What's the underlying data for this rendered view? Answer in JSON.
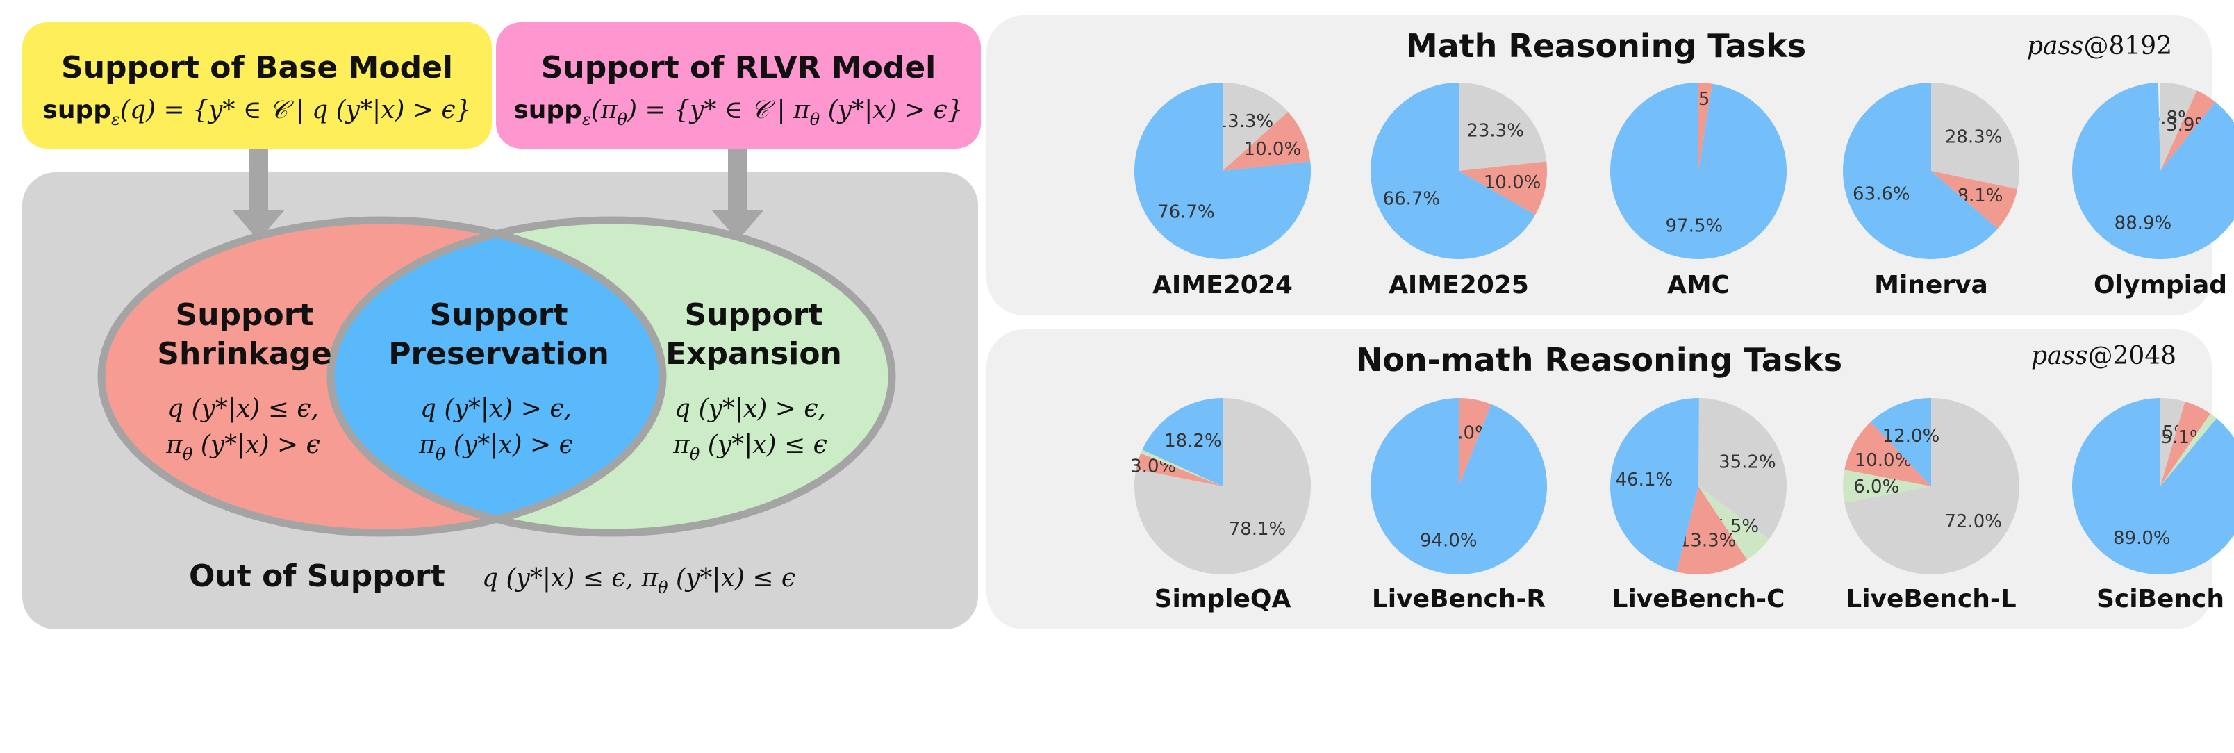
{
  "colors": {
    "base_box": "#fdee5a",
    "rlvr_box": "#fe97cf",
    "panel_gray": "#d4d4d4",
    "right_panel": "#f0f0f0",
    "shrink": "#f79c93",
    "preserve": "#5ab9fb",
    "expand": "#ccebc7",
    "outline": "#a4a4a4",
    "arrow": "#a6a6a6",
    "pie_preserve": "#74befa",
    "pie_shrink": "#f19a90",
    "pie_expand": "#cde7c5",
    "pie_out": "#d3d3d3"
  },
  "diagram": {
    "base_title": "Support of Base Model",
    "base_formula_lead": "supp",
    "base_formula_sub": "ε",
    "base_formula_rest": "(q) = {y* ∈ 𝒞 | q (y*|x) > ϵ}",
    "rlvr_title": "Support of RLVR Model",
    "rlvr_formula_lead": "supp",
    "rlvr_formula_sub": "ε",
    "rlvr_formula_rest": "(π",
    "rlvr_formula_sub2": "θ",
    "rlvr_formula_tail": ") = {y* ∈ 𝒞 | π",
    "rlvr_formula_sub3": "θ",
    "rlvr_formula_end": " (y*|x) > ϵ}",
    "shrink_title_1": "Support",
    "shrink_title_2": "Shrinkage",
    "shrink_cond_1": "q (y*|x) ≤ ϵ,",
    "shrink_cond_2_a": "π",
    "shrink_cond_2_sub": "θ",
    "shrink_cond_2_b": " (y*|x) > ϵ",
    "preserve_title_1": "Support",
    "preserve_title_2": "Preservation",
    "preserve_cond_1": "q (y*|x) > ϵ,",
    "preserve_cond_2_a": "π",
    "preserve_cond_2_sub": "θ",
    "preserve_cond_2_b": " (y*|x) > ϵ",
    "expand_title_1": "Support",
    "expand_title_2": "Expansion",
    "expand_cond_1": "q (y*|x) > ϵ,",
    "expand_cond_2_a": "π",
    "expand_cond_2_sub": "θ",
    "expand_cond_2_b": " (y*|x) ≤ ϵ",
    "out_title": "Out of Support",
    "out_cond_a": "q (y*|x) ≤ ϵ, π",
    "out_cond_sub": "θ",
    "out_cond_b": " (y*|x) ≤ ϵ"
  },
  "chart_data": [
    {
      "type": "pie",
      "title": "Math Reasoning Tasks",
      "annotation_italic": "pass",
      "annotation_rest": "@8192",
      "pies": [
        {
          "name": "AIME2024",
          "slices": [
            {
              "category": "out",
              "value": 13.3,
              "label": "13.3%"
            },
            {
              "category": "shrink",
              "value": 10.0,
              "label": "10.0%"
            },
            {
              "category": "expand",
              "value": 0,
              "label": ""
            },
            {
              "category": "preserve",
              "value": 76.7,
              "label": "76.7%"
            }
          ]
        },
        {
          "name": "AIME2025",
          "slices": [
            {
              "category": "out",
              "value": 23.3,
              "label": "23.3%"
            },
            {
              "category": "shrink",
              "value": 10.0,
              "label": "10.0%"
            },
            {
              "category": "expand",
              "value": 0,
              "label": ""
            },
            {
              "category": "preserve",
              "value": 66.7,
              "label": "66.7%"
            }
          ]
        },
        {
          "name": "AMC",
          "slices": [
            {
              "category": "out",
              "value": 0,
              "label": ""
            },
            {
              "category": "shrink",
              "value": 2.5,
              "label": "2.5%"
            },
            {
              "category": "expand",
              "value": 0,
              "label": ""
            },
            {
              "category": "preserve",
              "value": 97.5,
              "label": "97.5%"
            }
          ]
        },
        {
          "name": "Minerva",
          "slices": [
            {
              "category": "out",
              "value": 28.3,
              "label": "28.3%"
            },
            {
              "category": "shrink",
              "value": 8.1,
              "label": "8.1%"
            },
            {
              "category": "expand",
              "value": 0,
              "label": ""
            },
            {
              "category": "preserve",
              "value": 63.6,
              "label": "63.6%"
            }
          ]
        },
        {
          "name": "Olympiad",
          "slices": [
            {
              "category": "out",
              "value": 6.8,
              "label": "6.8%"
            },
            {
              "category": "shrink",
              "value": 3.9,
              "label": "3.9%"
            },
            {
              "category": "expand",
              "value": 0,
              "label": ""
            },
            {
              "category": "preserve",
              "value": 88.9,
              "label": "88.9%"
            }
          ]
        }
      ]
    },
    {
      "type": "pie",
      "title": "Non-math Reasoning Tasks",
      "annotation_italic": "pass",
      "annotation_rest": "@2048",
      "pies": [
        {
          "name": "SimpleQA",
          "slices": [
            {
              "category": "out",
              "value": 78.1,
              "label": "78.1%"
            },
            {
              "category": "shrink",
              "value": 3.0,
              "label": "3.0%"
            },
            {
              "category": "expand",
              "value": 0.7,
              "label": ""
            },
            {
              "category": "preserve",
              "value": 18.2,
              "label": "18.2%"
            }
          ]
        },
        {
          "name": "LiveBench-R",
          "slices": [
            {
              "category": "out",
              "value": 0,
              "label": ""
            },
            {
              "category": "shrink",
              "value": 6.0,
              "label": "6.0%"
            },
            {
              "category": "expand",
              "value": 0,
              "label": ""
            },
            {
              "category": "preserve",
              "value": 94.0,
              "label": "94.0%"
            }
          ]
        },
        {
          "name": "LiveBench-C",
          "slices": [
            {
              "category": "out",
              "value": 35.2,
              "label": "35.2%"
            },
            {
              "category": "expand",
              "value": 5.5,
              "label": "5.5%"
            },
            {
              "category": "shrink",
              "value": 13.3,
              "label": "13.3%"
            },
            {
              "category": "preserve",
              "value": 46.1,
              "label": "46.1%"
            }
          ]
        },
        {
          "name": "LiveBench-L",
          "slices": [
            {
              "category": "out",
              "value": 72.0,
              "label": "72.0%"
            },
            {
              "category": "expand",
              "value": 6.0,
              "label": "6.0%"
            },
            {
              "category": "shrink",
              "value": 10.0,
              "label": "10.0%"
            },
            {
              "category": "preserve",
              "value": 12.0,
              "label": "12.0%"
            }
          ]
        },
        {
          "name": "SciBench",
          "slices": [
            {
              "category": "out",
              "value": 4.5,
              "label": "4.5%"
            },
            {
              "category": "shrink",
              "value": 5.1,
              "label": "5.1%"
            },
            {
              "category": "expand",
              "value": 1.4,
              "label": ""
            },
            {
              "category": "preserve",
              "value": 89.0,
              "label": "89.0%"
            }
          ]
        }
      ]
    }
  ]
}
